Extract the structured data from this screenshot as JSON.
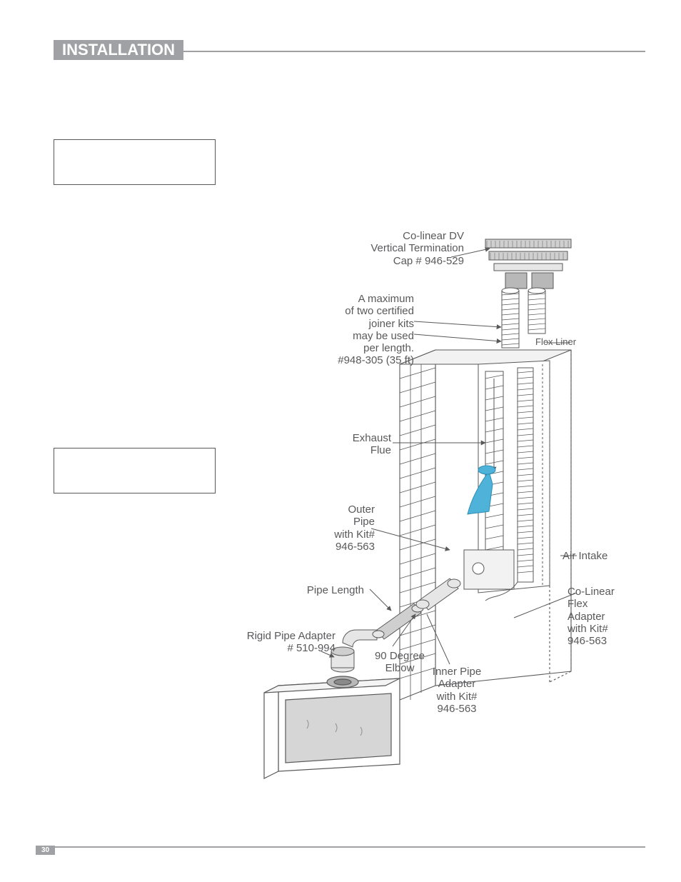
{
  "header": {
    "title": "INSTALLATION"
  },
  "page_number": "30",
  "colors": {
    "header_bar": "#9fa1a4",
    "text": "#59595b",
    "accent_pipe": "#4fb3d9",
    "line": "#59595b",
    "brick_fill": "#ffffff"
  },
  "diagram": {
    "type": "diagram",
    "labels": {
      "cap": {
        "text": "Co-linear DV\nVertical Termination\nCap # 946-529"
      },
      "joiner": {
        "text": "A maximum\nof two certified\njoiner kits\nmay be used\nper length.\n#948-305 (35 ft)"
      },
      "flex_liner": {
        "text": "Flex Liner"
      },
      "exhaust": {
        "text": "Exhaust\nFlue"
      },
      "outer_pipe": {
        "text": "Outer\nPipe\nwith Kit#\n946-563"
      },
      "air_intake": {
        "text": "Air Intake"
      },
      "pipe_len": {
        "text": "Pipe Length"
      },
      "colinear": {
        "text": "Co-Linear\nFlex\nAdapter\nwith Kit#\n946-563"
      },
      "rigid": {
        "text": "Rigid Pipe Adapter\n# 510-994"
      },
      "elbow": {
        "text": "90 Degree\nElbow"
      },
      "inner": {
        "text": "Inner Pipe\nAdapter\nwith Kit#\n946-563"
      }
    }
  }
}
